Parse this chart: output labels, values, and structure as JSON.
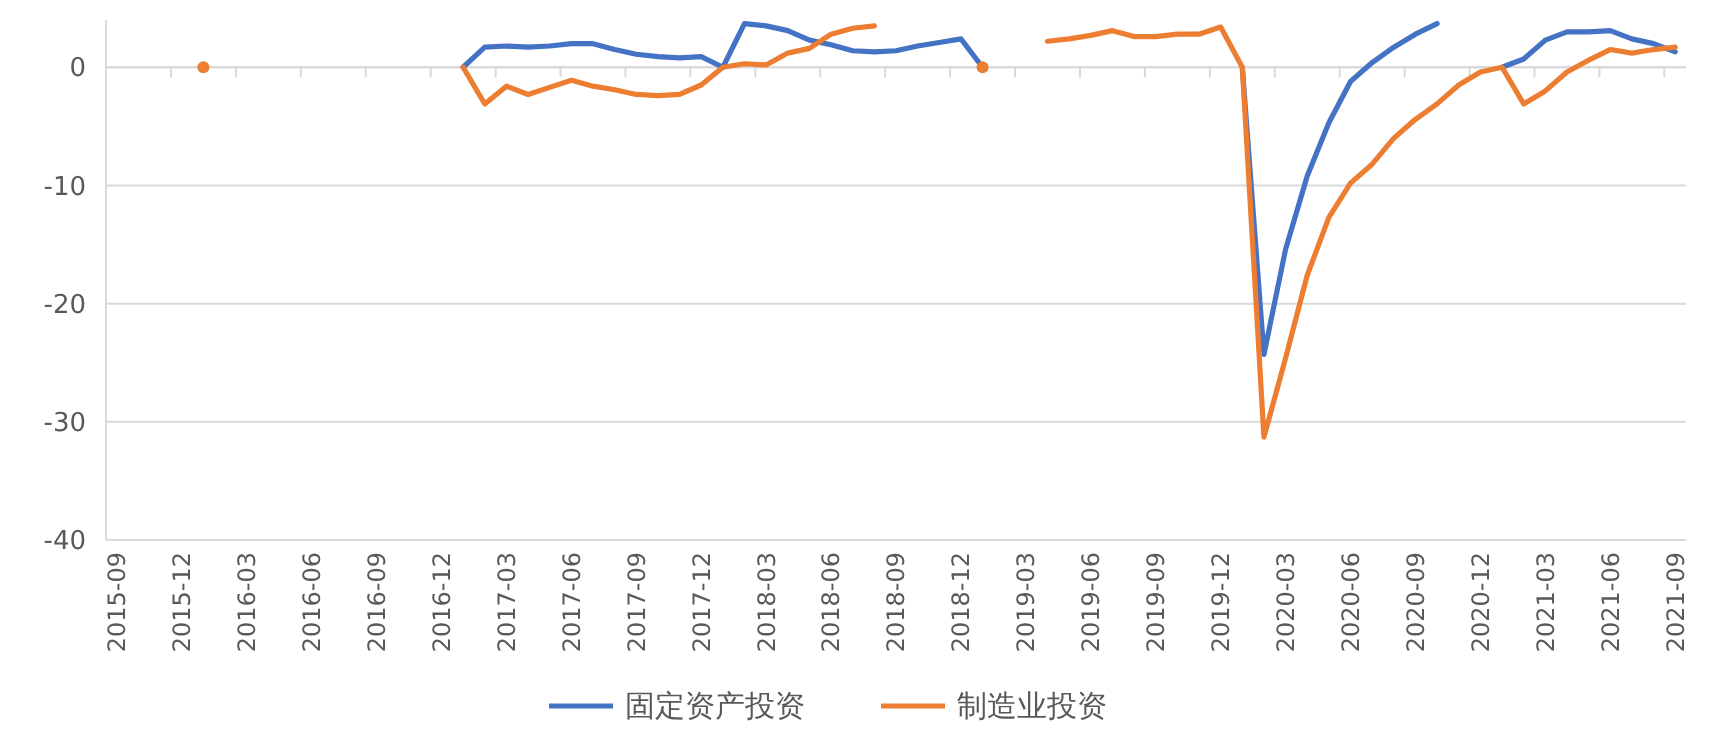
{
  "chart_data": {
    "type": "line",
    "categories": [
      "2015-09",
      null,
      null,
      "2015-12",
      null,
      null,
      "2016-03",
      null,
      null,
      "2016-06",
      null,
      null,
      "2016-09",
      null,
      null,
      "2016-12",
      null,
      null,
      "2017-03",
      null,
      null,
      "2017-06",
      null,
      null,
      "2017-09",
      null,
      null,
      "2017-12",
      null,
      null,
      "2018-03",
      null,
      null,
      "2018-06",
      null,
      null,
      "2018-09",
      null,
      null,
      "2018-12",
      null,
      null,
      "2019-03",
      null,
      null,
      "2019-06",
      null,
      null,
      "2019-09",
      null,
      null,
      "2019-12",
      null,
      null,
      "2020-03",
      null,
      null,
      "2020-06",
      null,
      null,
      "2020-09",
      null,
      null,
      "2020-12",
      null,
      null,
      "2021-03",
      null,
      null,
      "2021-06",
      null,
      null,
      "2021-09"
    ],
    "series": [
      {
        "name": "固定资产投资",
        "color": "#4472c4",
        "values": [
          null,
          null,
          null,
          null,
          null,
          null,
          null,
          null,
          null,
          null,
          null,
          null,
          null,
          null,
          null,
          null,
          0,
          1.7,
          1.8,
          1.7,
          1.8,
          2.0,
          2.0,
          1.5,
          1.1,
          0.9,
          0.8,
          0.9,
          0,
          3.7,
          3.5,
          3.1,
          2.3,
          1.9,
          1.4,
          1.3,
          1.4,
          1.8,
          2.1,
          2.4,
          0,
          null,
          null,
          null,
          null,
          null,
          null,
          null,
          null,
          null,
          null,
          null,
          0,
          -24.3,
          -15.4,
          -9.2,
          -4.7,
          -1.2,
          0.4,
          1.7,
          2.8,
          3.7,
          null,
          null,
          0,
          0.7,
          2.3,
          3.0,
          3.0,
          3.1,
          2.4,
          2.0,
          1.3
        ]
      },
      {
        "name": "制造业投资",
        "color": "#ed7d31",
        "values": [
          null,
          null,
          null,
          null,
          0,
          null,
          null,
          null,
          null,
          null,
          null,
          null,
          null,
          null,
          null,
          null,
          0,
          -3.1,
          -1.6,
          -2.3,
          -1.7,
          -1.1,
          -1.6,
          -1.9,
          -2.3,
          -2.4,
          -2.3,
          -1.5,
          0,
          0.3,
          0.2,
          1.2,
          1.6,
          2.8,
          3.3,
          3.5,
          null,
          null,
          null,
          null,
          0,
          null,
          null,
          2.2,
          2.4,
          2.7,
          3.1,
          2.6,
          2.6,
          2.8,
          2.8,
          3.4,
          0,
          -31.3,
          -24.6,
          -17.6,
          -12.7,
          -9.8,
          -8.2,
          -6.0,
          -4.4,
          -3.1,
          -1.5,
          -0.4,
          0,
          -3.1,
          -2.0,
          -0.4,
          0.6,
          1.5,
          1.2,
          1.5,
          1.7
        ]
      }
    ],
    "ylim": [
      -40,
      4
    ],
    "yticks": [
      -40,
      -30,
      -20,
      -10,
      0
    ],
    "grid": "y",
    "legend": "bottom",
    "marker": "none",
    "line_style": "solid"
  }
}
